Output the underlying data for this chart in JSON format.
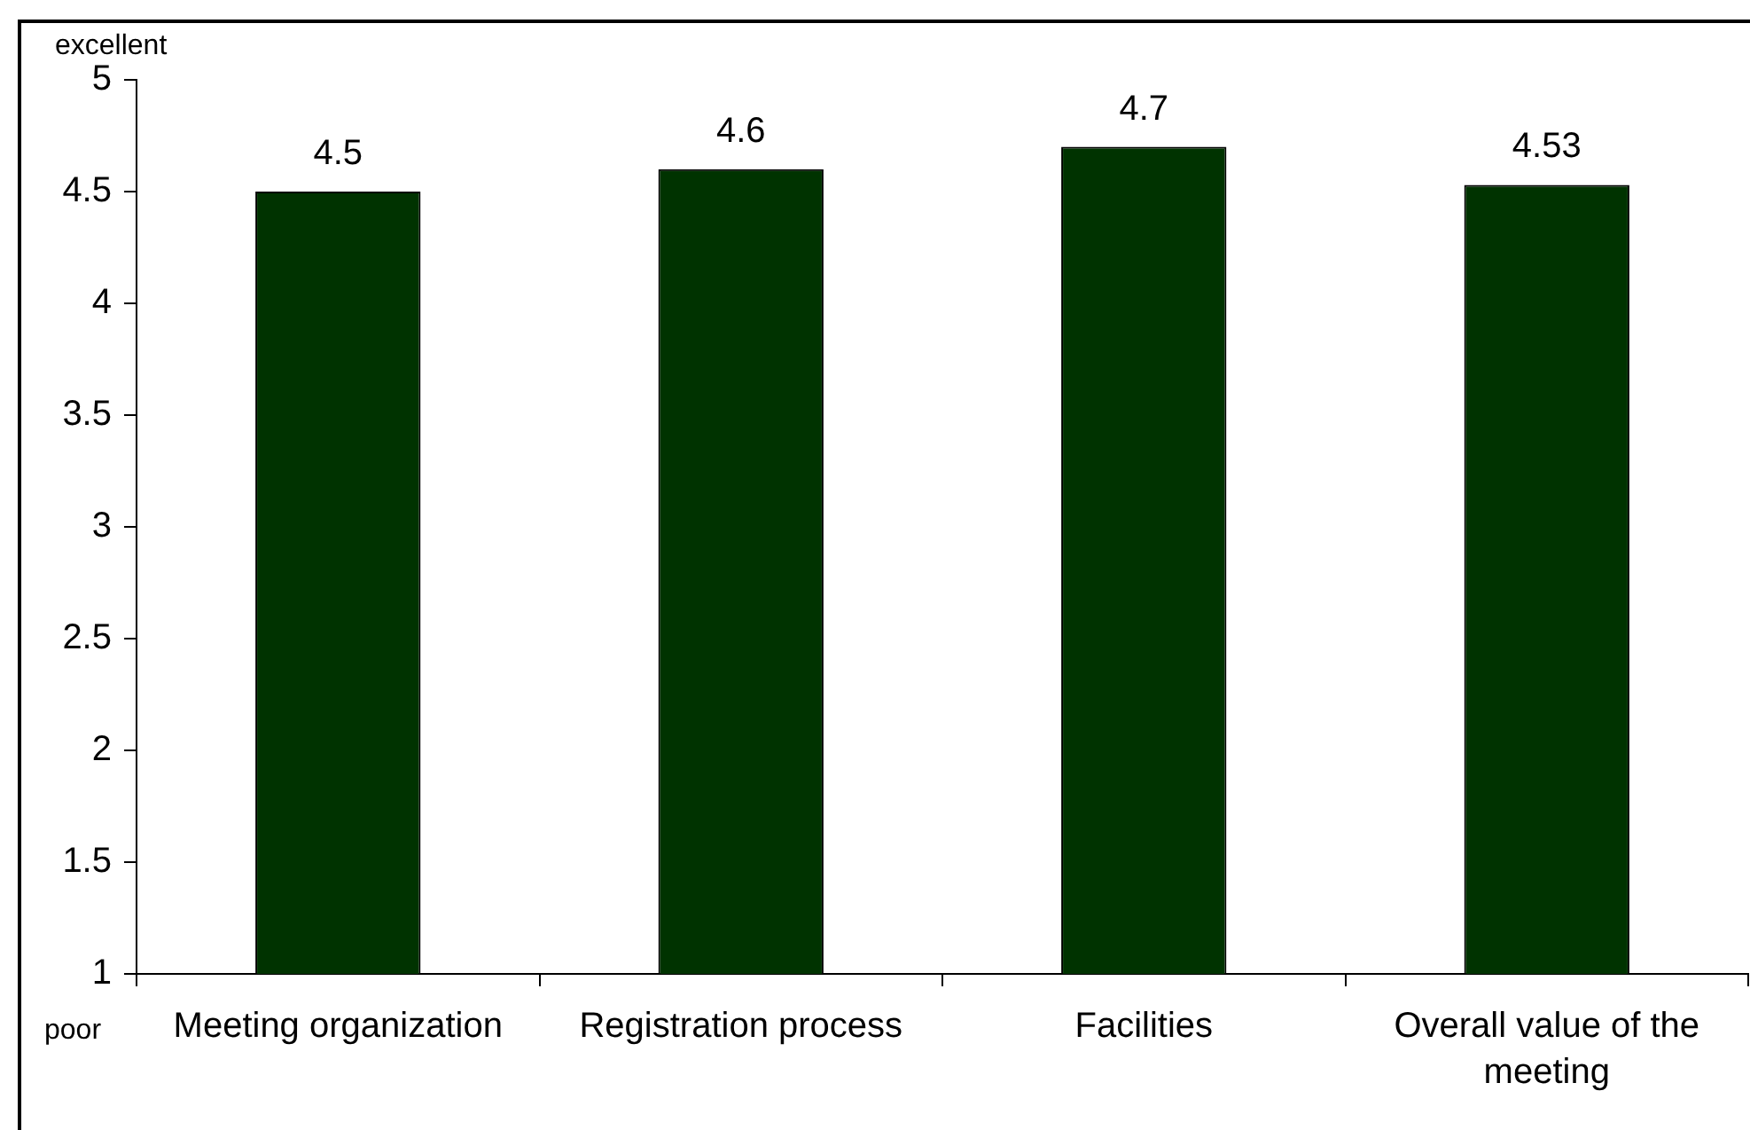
{
  "chart_data": {
    "type": "bar",
    "categories": [
      "Meeting organization",
      "Registration process",
      "Facilities",
      "Overall value of the meeting"
    ],
    "values": [
      4.5,
      4.6,
      4.7,
      4.53
    ],
    "color": "#003300",
    "ylim": [
      1,
      5
    ],
    "yticks": [
      1,
      1.5,
      2,
      2.5,
      3,
      3.5,
      4,
      4.5,
      5
    ],
    "data_labels": true,
    "annotations": [
      "excellent",
      "poor"
    ]
  }
}
